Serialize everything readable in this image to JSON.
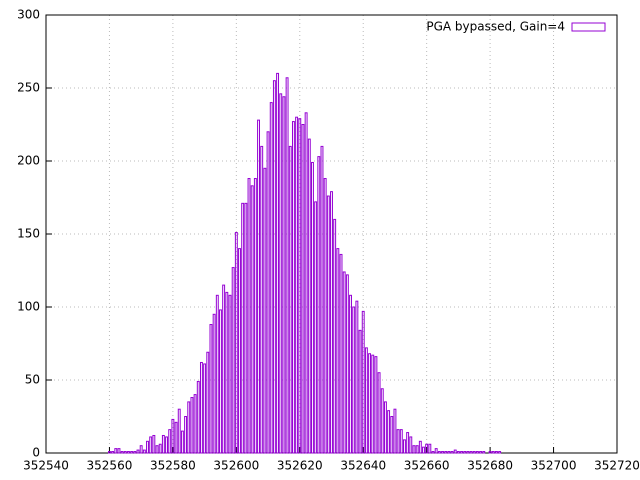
{
  "chart_data": {
    "type": "bar",
    "series": [
      {
        "name": "PGA bypassed, Gain=4",
        "color": "#9400d3",
        "x": [
          352560,
          352561,
          352562,
          352563,
          352564,
          352565,
          352566,
          352567,
          352568,
          352569,
          352570,
          352571,
          352572,
          352573,
          352574,
          352575,
          352576,
          352577,
          352578,
          352579,
          352580,
          352581,
          352582,
          352583,
          352584,
          352585,
          352586,
          352587,
          352588,
          352589,
          352590,
          352591,
          352592,
          352593,
          352594,
          352595,
          352596,
          352597,
          352598,
          352599,
          352600,
          352601,
          352602,
          352603,
          352604,
          352605,
          352606,
          352607,
          352608,
          352609,
          352610,
          352611,
          352612,
          352613,
          352614,
          352615,
          352616,
          352617,
          352618,
          352619,
          352620,
          352621,
          352622,
          352623,
          352624,
          352625,
          352626,
          352627,
          352628,
          352629,
          352630,
          352631,
          352632,
          352633,
          352634,
          352635,
          352636,
          352637,
          352638,
          352639,
          352640,
          352641,
          352642,
          352643,
          352644,
          352645,
          352646,
          352647,
          352648,
          352649,
          352650,
          352651,
          352652,
          352653,
          352654,
          352655,
          352656,
          352657,
          352658,
          352659,
          352660,
          352661,
          352662,
          352663,
          352664,
          352665,
          352666,
          352667,
          352668,
          352669,
          352670,
          352671,
          352672,
          352673,
          352674,
          352675,
          352676,
          352677,
          352678,
          352679,
          352680,
          352681,
          352682,
          352683
        ],
        "values": [
          1,
          1,
          3,
          3,
          1,
          1,
          1,
          1,
          1,
          2,
          5,
          2,
          8,
          11,
          12,
          5,
          6,
          12,
          11,
          16,
          23,
          21,
          30,
          15,
          25,
          35,
          38,
          40,
          49,
          62,
          61,
          69,
          88,
          95,
          108,
          98,
          115,
          110,
          108,
          127,
          151,
          140,
          171,
          171,
          188,
          183,
          188,
          228,
          210,
          195,
          220,
          240,
          255,
          260,
          246,
          244,
          257,
          210,
          227,
          230,
          229,
          225,
          233,
          215,
          199,
          172,
          203,
          210,
          188,
          176,
          179,
          160,
          140,
          136,
          124,
          122,
          108,
          100,
          104,
          84,
          97,
          72,
          68,
          67,
          66,
          55,
          44,
          35,
          29,
          25,
          30,
          16,
          16,
          9,
          14,
          11,
          5,
          5,
          8,
          4,
          6,
          6,
          1,
          3,
          1,
          1,
          1,
          1,
          1,
          2,
          1,
          1,
          1,
          1,
          1,
          1,
          1,
          1,
          1,
          0,
          1,
          1,
          1,
          1
        ]
      }
    ],
    "xlim": [
      352540,
      352720
    ],
    "xticks": [
      352540,
      352560,
      352580,
      352600,
      352620,
      352640,
      352660,
      352680,
      352700,
      352720
    ],
    "ylim": [
      0,
      300
    ],
    "yticks": [
      0,
      50,
      100,
      150,
      200,
      250,
      300
    ],
    "grid": true,
    "legend": "top-right"
  }
}
